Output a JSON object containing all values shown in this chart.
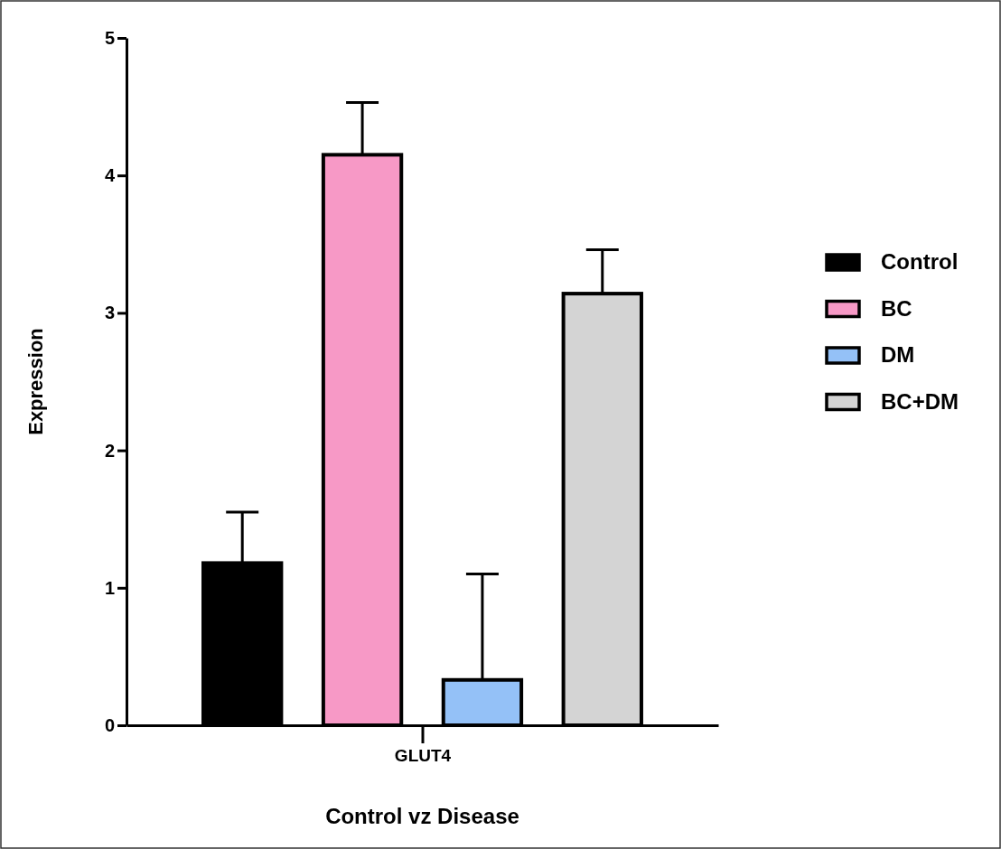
{
  "chart_data": {
    "type": "bar",
    "xlabel": "Control vz Disease",
    "ylabel": "Expression",
    "categories": [
      "GLUT4"
    ],
    "series": [
      {
        "name": "Control",
        "color": "#000000",
        "values": [
          1.18
        ],
        "errors": [
          [
            1.18,
            1.55
          ]
        ]
      },
      {
        "name": "BC",
        "color": "#f799c6",
        "values": [
          4.15
        ],
        "errors": [
          [
            4.15,
            4.53
          ]
        ]
      },
      {
        "name": "DM",
        "color": "#94c1f7",
        "values": [
          0.33
        ],
        "errors": [
          [
            0.33,
            1.1
          ]
        ]
      },
      {
        "name": "BC+DM",
        "color": "#d4d4d4",
        "values": [
          3.14
        ],
        "errors": [
          [
            3.14,
            3.46
          ]
        ]
      }
    ],
    "ylim": [
      0,
      5
    ],
    "yticks": [
      0,
      1,
      2,
      3,
      4,
      5
    ],
    "grid": false,
    "legend": "right"
  }
}
